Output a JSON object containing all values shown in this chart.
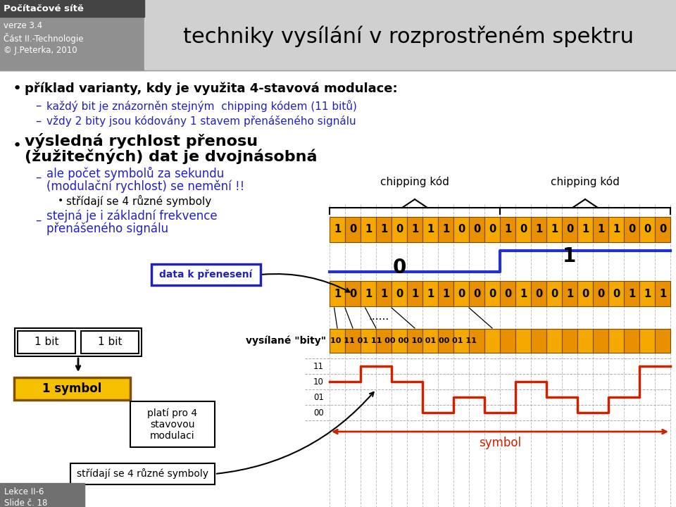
{
  "title": "techniky vysílání v rozprostřeném spektru",
  "header_line1": "Počítačové sítě",
  "header_line2": "verze 3.4",
  "header_line3": "Část II.-Technologie",
  "header_line4": "© J.Peterka, 2010",
  "footer1": "Lekce II-6",
  "footer2": "Slide č. 18",
  "bullet1": "příklad varianty, kdy je využita 4-stavová modulace:",
  "sub1a": "každý bit je znázorněn stejným  chipping kódem (11 bitů)",
  "sub1b": "vždy 2 bity jsou kódovány 1 stavem přenášeného signálu",
  "bullet2_line1": "výsledná rychlost přenosu",
  "bullet2_line2": "(žužitečných) dat je dvojnásobná",
  "sub2a_line1": "ale počet symbolů za sekundu",
  "sub2a_line2": "(modulační rychlost) se nemění !!",
  "sub2a2": "střídají se 4 různé symboly",
  "sub2b_line1": "stejná je i základní frekvence",
  "sub2b_line2": "přenášeného signálu",
  "data_label": "data k přenesení",
  "bits_label": "vysílané \"bity\"",
  "chipping_label": "chipping kód",
  "bits_box1": "1 bit",
  "bits_box2": "1 bit",
  "symbol_box": "1 symbol",
  "plati_box": "platí pro 4\nstavovou\nmodulaci",
  "stridaji_box": "střídají se 4 různé symboly",
  "row1": [
    1,
    0,
    1,
    1,
    0,
    1,
    1,
    1,
    0,
    0,
    0,
    1,
    0,
    1,
    1,
    0,
    1,
    1,
    1,
    0,
    0,
    0
  ],
  "row2": [
    1,
    0,
    1,
    1,
    0,
    1,
    1,
    1,
    0,
    0,
    0,
    0,
    1,
    0,
    0,
    1,
    0,
    0,
    0,
    1,
    1,
    1
  ],
  "row3_text": "10 11 01 11 00 00 10 01 00 01 11",
  "signal_levels": [
    1,
    0,
    1,
    3,
    2,
    3,
    1,
    2,
    3,
    2,
    0
  ],
  "orange_a": "#f5a800",
  "orange_b": "#e89000",
  "orange_c": "#f0b000",
  "blue_signal": "#2233cc",
  "red_signal": "#cc2200",
  "text_blue": "#2222bb",
  "grid_color": "#999999",
  "header_dark": "#444444",
  "header_mid": "#888888",
  "title_bg": "#d0d0d0",
  "content_bg": "#ffffff"
}
